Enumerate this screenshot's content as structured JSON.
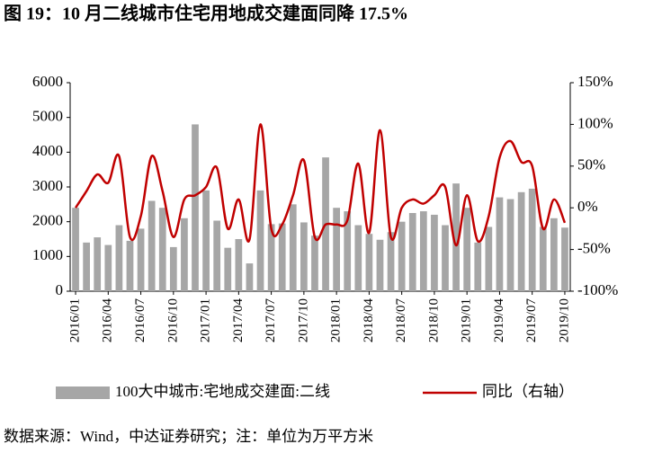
{
  "chart_data": {
    "type": "bar_line",
    "title": "图 19：10 月二线城市住宅用地成交建面同降 17.5%",
    "categories": [
      "2016/01",
      null,
      null,
      "2016/04",
      null,
      null,
      "2016/07",
      null,
      null,
      "2016/10",
      null,
      null,
      "2017/01",
      null,
      null,
      "2017/04",
      null,
      null,
      "2017/07",
      null,
      null,
      "2017/10",
      null,
      null,
      "2018/01",
      null,
      null,
      "2018/04",
      null,
      null,
      "2018/07",
      null,
      null,
      "2018/10",
      null,
      null,
      "2019/01",
      null,
      null,
      "2019/04",
      null,
      null,
      "2019/07",
      null,
      null,
      "2019/10"
    ],
    "series": [
      {
        "name": "100大中城市:宅地成交建面:二线",
        "type": "bar",
        "color": "#a6a6a6",
        "values": [
          2400,
          1400,
          1550,
          1330,
          1900,
          1450,
          1800,
          2600,
          2400,
          1270,
          2100,
          4800,
          2900,
          2030,
          1250,
          1500,
          800,
          2900,
          1930,
          1950,
          2500,
          1980,
          1600,
          3850,
          2400,
          2300,
          1900,
          1650,
          1480,
          1700,
          2000,
          2250,
          2300,
          2200,
          1900,
          3100,
          2400,
          1400,
          1850,
          2700,
          2650,
          2850,
          2950,
          1850,
          2100,
          1830
        ]
      },
      {
        "name": "同比（右轴）",
        "type": "line",
        "axis": "y2",
        "color": "#c00000",
        "values": [
          0,
          20,
          40,
          30,
          62,
          -35,
          -10,
          62,
          20,
          -35,
          10,
          15,
          25,
          48,
          -25,
          10,
          -38,
          100,
          -25,
          -20,
          15,
          57,
          -35,
          -20,
          -20,
          -15,
          53,
          -30,
          93,
          -35,
          0,
          10,
          5,
          15,
          25,
          -45,
          15,
          -40,
          -10,
          60,
          80,
          55,
          50,
          -25,
          10,
          -18
        ]
      }
    ],
    "ylim": [
      0,
      6000
    ],
    "yticks": [
      0,
      1000,
      2000,
      3000,
      4000,
      5000,
      6000
    ],
    "y2lim": [
      -100,
      150
    ],
    "y2ticks": [
      {
        "value": -100,
        "label": "-100%"
      },
      {
        "value": -50,
        "label": "-50%"
      },
      {
        "value": 0,
        "label": "0%"
      },
      {
        "value": 50,
        "label": "50%"
      },
      {
        "value": 100,
        "label": "100%"
      },
      {
        "value": 150,
        "label": "150%"
      }
    ],
    "source": "数据来源：Wind，中达证券研究；注：单位为万平方米"
  }
}
